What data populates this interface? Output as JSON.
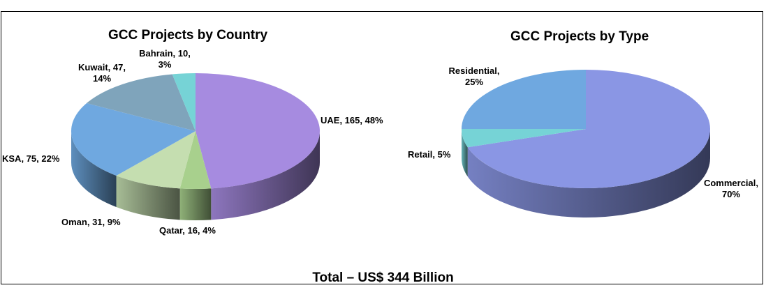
{
  "footer": {
    "total": "Total – US$ 344 Billion"
  },
  "chart_data": [
    {
      "type": "pie",
      "title": "GCC Projects by Country",
      "unit": "US$ Billion",
      "slices": [
        {
          "name": "UAE",
          "value": 165,
          "percent": 48,
          "color": "#a68be0",
          "label_lines": [
            "UAE, 165, 48%"
          ]
        },
        {
          "name": "Qatar",
          "value": 16,
          "percent": 4,
          "color": "#a8d08d",
          "label_lines": [
            "Qatar, 16, 4%"
          ]
        },
        {
          "name": "Oman",
          "value": 31,
          "percent": 9,
          "color": "#c5deb0",
          "label_lines": [
            "Oman, 31, 9%"
          ]
        },
        {
          "name": "KSA",
          "value": 75,
          "percent": 22,
          "color": "#6fa8e0",
          "label_lines": [
            "KSA, 75, 22%"
          ]
        },
        {
          "name": "Kuwait",
          "value": 47,
          "percent": 14,
          "color": "#7fa4bb",
          "label_lines": [
            "Kuwait, 47,",
            "14%"
          ]
        },
        {
          "name": "Bahrain",
          "value": 10,
          "percent": 3,
          "color": "#76d3d6",
          "label_lines": [
            "Bahrain, 10,",
            "3%"
          ]
        }
      ]
    },
    {
      "type": "pie",
      "title": "GCC Projects by Type",
      "slices": [
        {
          "name": "Commercial",
          "percent": 70,
          "color": "#8a96e4",
          "label_lines": [
            "Commercial,",
            "70%"
          ]
        },
        {
          "name": "Retail",
          "percent": 5,
          "color": "#76d3d6",
          "label_lines": [
            "Retail, 5%"
          ]
        },
        {
          "name": "Residential",
          "percent": 25,
          "color": "#6fa8e0",
          "label_lines": [
            "Residential,",
            "25%"
          ]
        }
      ]
    }
  ]
}
